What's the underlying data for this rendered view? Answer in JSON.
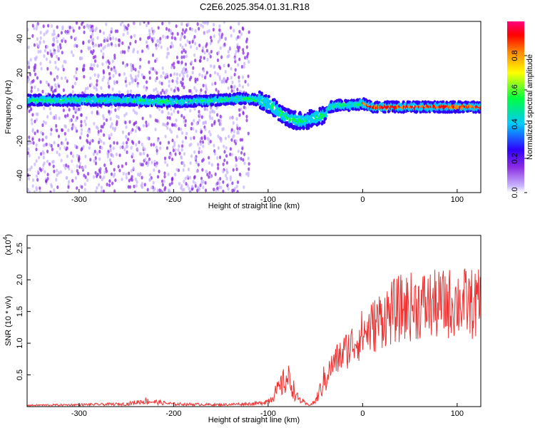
{
  "title": "C2E6.2025.354.01.31.R18",
  "chart_data": [
    {
      "type": "heatmap",
      "xlabel": "Height of straight line (km)",
      "ylabel": "Frequency (Hz)",
      "xlim": [
        -355,
        125
      ],
      "ylim": [
        -50,
        50
      ],
      "x_ticks": [
        -300,
        -200,
        -100,
        0,
        100
      ],
      "x_tick_labels": [
        "-300",
        "-200",
        "-100",
        "0",
        "100"
      ],
      "y_ticks": [
        -40,
        -20,
        0,
        20,
        40
      ],
      "y_tick_labels": [
        "-40",
        "-20",
        "0",
        "20",
        "40"
      ],
      "colorbar": {
        "label": "Normalized spectral amplitude",
        "range": [
          0,
          1
        ],
        "ticks": [
          0.0,
          0.2,
          0.4,
          0.6,
          0.8
        ],
        "tick_labels": [
          "0.0",
          "0.2",
          "0.4",
          "0.6",
          "0.8"
        ],
        "colors": [
          "#c8b4ff",
          "#8a2be2",
          "#3000ff",
          "#00c8ff",
          "#00ff40",
          "#ffff00",
          "#ff8800",
          "#ff0000",
          "#ff0080"
        ]
      },
      "ridge": {
        "x": [
          -355,
          -300,
          -250,
          -200,
          -150,
          -130,
          -110,
          -100,
          -90,
          -80,
          -70,
          -60,
          -50,
          -40,
          -35,
          -25,
          -10,
          0,
          10,
          50,
          100,
          125
        ],
        "y": [
          4,
          4,
          4,
          3,
          4,
          5,
          4,
          2,
          -2,
          -6,
          -8,
          -8,
          -6,
          -5,
          0,
          1,
          1,
          2,
          0,
          0,
          0,
          0
        ]
      },
      "background_noise_xrange": [
        -355,
        -120
      ]
    },
    {
      "type": "line",
      "xlabel": "Height of straight line (km)",
      "ylabel": "SNR (10 * v/v)",
      "y_multiplier_label": "(x10",
      "y_multiplier_exp": "4",
      "xlim": [
        -355,
        125
      ],
      "ylim": [
        0,
        27000
      ],
      "x_ticks": [
        -300,
        -200,
        -100,
        0,
        100
      ],
      "x_tick_labels": [
        "-300",
        "-200",
        "-100",
        "0",
        "100"
      ],
      "y_ticks": [
        5000,
        10000,
        15000,
        20000,
        25000
      ],
      "y_tick_labels": [
        "0.5",
        "1.0",
        "1.5",
        "2.0",
        "2.5"
      ],
      "color": "#ee3333",
      "series": [
        {
          "x": [
            -355,
            -300,
            -250,
            -230,
            -200,
            -150,
            -110,
            -100,
            -90,
            -80,
            -75,
            -70,
            -60,
            -55,
            -50,
            -45,
            -40,
            -30,
            -20,
            -10,
            0,
            10,
            20,
            40,
            60,
            80,
            100,
            125
          ],
          "values": [
            200,
            300,
            400,
            900,
            400,
            300,
            500,
            900,
            2500,
            4500,
            3500,
            1500,
            400,
            300,
            800,
            2500,
            4500,
            7000,
            8500,
            10000,
            11500,
            12500,
            14000,
            15500,
            16000,
            16000,
            16500,
            16000
          ]
        }
      ]
    }
  ]
}
